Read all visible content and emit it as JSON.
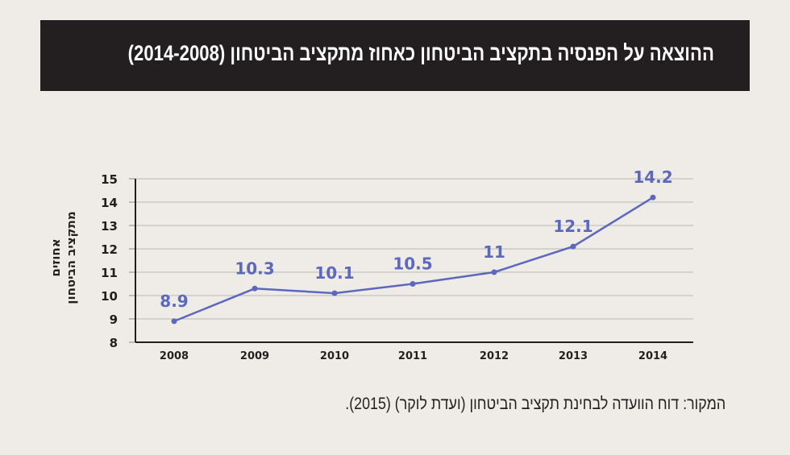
{
  "title": "ההוצאה על הפנסיה בתקציב הביטחון כאחוז מתקציב הביטחון (2014-2008)",
  "source": "המקור: דוח הוועדה לבחינת תקציב הביטחון (ועדת לוקר) (2015).",
  "chart_data": {
    "type": "line",
    "title": "ההוצאה על הפנסיה בתקציב הביטחון כאחוז מתקציב הביטחון (2014-2008)",
    "xlabel": "",
    "ylabel_lines": [
      "אחוזים",
      "מתקציב הביטחון"
    ],
    "categories": [
      "2008",
      "2009",
      "2010",
      "2011",
      "2012",
      "2013",
      "2014"
    ],
    "values": [
      8.9,
      10.3,
      10.1,
      10.5,
      11,
      12.1,
      14.2
    ],
    "labels": [
      "8.9",
      "10.3",
      "10.1",
      "10.5",
      "11",
      "12.1",
      "14.2"
    ],
    "yticks": [
      "8",
      "9",
      "10",
      "11",
      "12",
      "13",
      "14",
      "15"
    ],
    "ylim": [
      8,
      15
    ],
    "grid": true,
    "line_color": "#5b68bd"
  }
}
